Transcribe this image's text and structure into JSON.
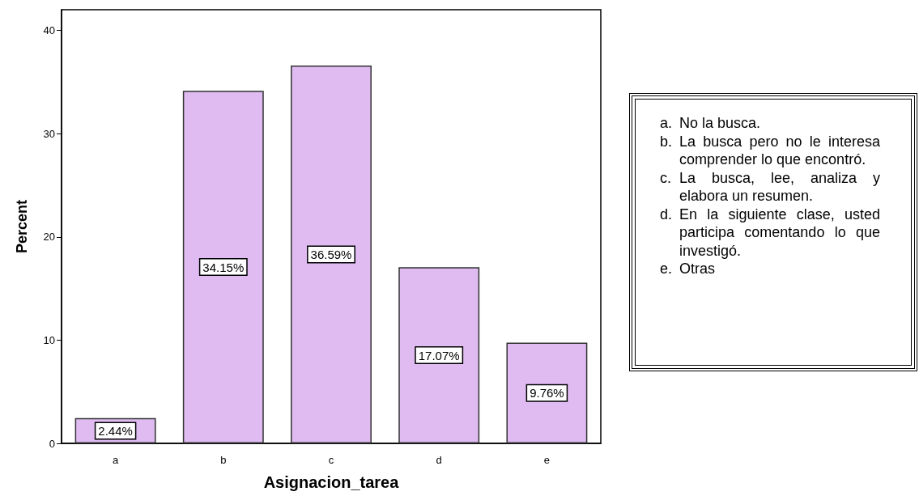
{
  "chart_data": {
    "type": "bar",
    "xlabel": "Asignacion_tarea",
    "ylabel": "Percent",
    "categories": [
      "a",
      "b",
      "c",
      "d",
      "e"
    ],
    "values": [
      2.44,
      34.15,
      36.59,
      17.07,
      9.76
    ],
    "value_labels": [
      "2.44%",
      "34.15%",
      "36.59%",
      "17.07%",
      "9.76%"
    ],
    "color": "#dfbbf2",
    "ylim": [
      0,
      42
    ],
    "yticks": [
      0,
      10,
      20,
      30,
      40
    ],
    "grid": false,
    "annotations": [
      "a. No la busca.",
      "b. La busca pero no le interesa comprender lo que encontró.",
      "c. La busca, lee,  analiza y elabora un resumen.",
      "d. En la siguiente clase, usted participa comentando lo que investigó.",
      "e. Otras"
    ]
  }
}
